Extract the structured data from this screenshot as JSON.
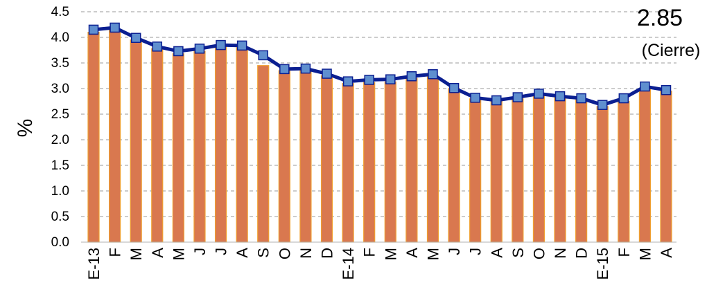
{
  "chart_data": {
    "type": "bar",
    "ylabel": "%",
    "xlabel": "",
    "ylim": [
      0,
      4.5
    ],
    "ytick_step": 0.5,
    "y_ticks": [
      "0.0",
      "0.5",
      "1.0",
      "1.5",
      "2.0",
      "2.5",
      "3.0",
      "3.5",
      "4.0",
      "4.5"
    ],
    "grid": "horizontal-dashed",
    "categories": [
      "E-13",
      "F",
      "M",
      "A",
      "M",
      "J",
      "J",
      "A",
      "S",
      "O",
      "N",
      "D",
      "E-14",
      "F",
      "M",
      "A",
      "M",
      "J",
      "J",
      "A",
      "S",
      "O",
      "N",
      "D",
      "E-15",
      "F",
      "M",
      "A"
    ],
    "series": [
      {
        "type": "bar",
        "values": [
          4.1,
          4.15,
          3.95,
          3.78,
          3.68,
          3.73,
          3.82,
          3.8,
          3.45,
          3.35,
          3.35,
          3.25,
          3.1,
          3.12,
          3.13,
          3.2,
          3.24,
          3.0,
          2.8,
          2.75,
          2.8,
          2.88,
          2.82,
          2.78,
          2.65,
          2.75,
          3.0,
          2.95
        ],
        "color": "#d9784f"
      },
      {
        "type": "line",
        "values": [
          4.15,
          4.19,
          3.99,
          3.82,
          3.73,
          3.78,
          3.85,
          3.84,
          3.65,
          3.38,
          3.39,
          3.29,
          3.14,
          3.17,
          3.18,
          3.24,
          3.28,
          3.01,
          2.82,
          2.77,
          2.83,
          2.9,
          2.85,
          2.81,
          2.68,
          2.81,
          3.04,
          2.97
        ],
        "color": "#0b1f91",
        "marker_color": "#5f8fcf"
      }
    ],
    "annotation": {
      "value": "2.85",
      "sub": "(Cierre)"
    }
  }
}
